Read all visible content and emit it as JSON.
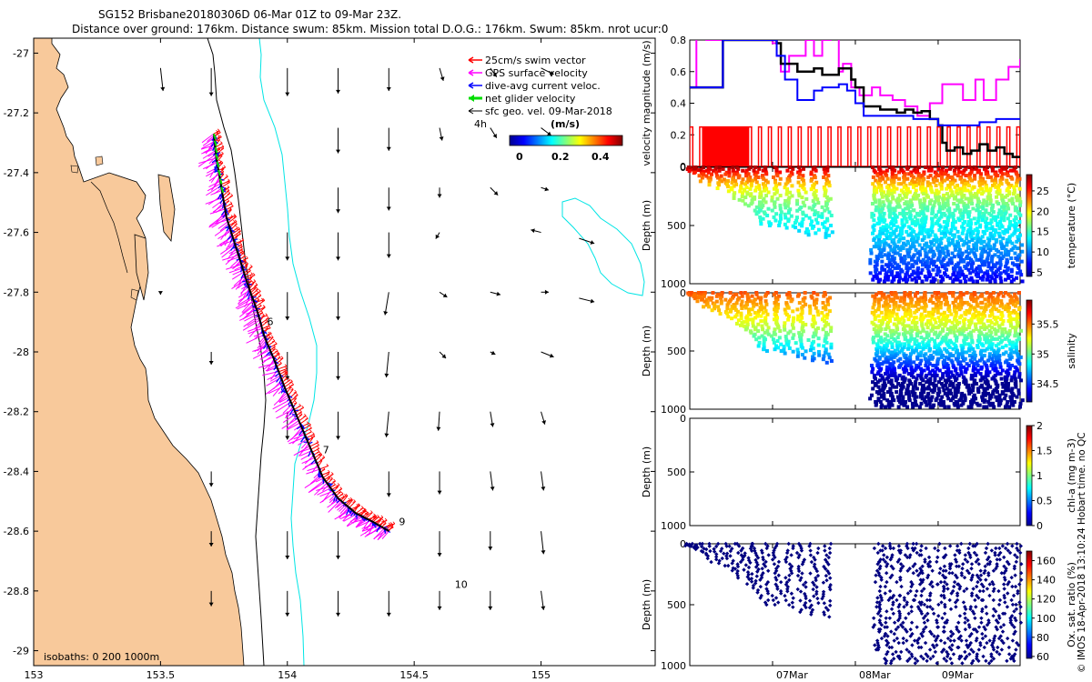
{
  "header": {
    "line1": "SG152 Brisbane20180306D 06-Mar 01Z to 09-Mar 23Z.",
    "line2": "Distance over ground: 176km. Distance swum: 85km. Mission total D.O.G.: 176km. Swum: 85km. nrot ucur:0"
  },
  "credit": "© IMOS 18-Apr-2018 13:10:24 Hobart time. no QC",
  "colors": {
    "land": "#f8c99b",
    "swim": "#ff0000",
    "gps": "#ff00ff",
    "current": "#0000ff",
    "net": "#00dd00",
    "sfc": "#000000",
    "isobath200": "#00e5e5",
    "isobath1000": "#000000"
  },
  "chart_data": [
    {
      "type": "scatter",
      "name": "map",
      "x_ticks": [
        "153",
        "153.5",
        "154",
        "154.5",
        "155"
      ],
      "x_tick_values": [
        153,
        153.5,
        154,
        154.5,
        155
      ],
      "y_ticks": [
        "-27",
        "-27.2",
        "-27.4",
        "-27.6",
        "-27.8",
        "-28",
        "-28.2",
        "-28.4",
        "-28.6",
        "-28.8",
        "-29"
      ],
      "y_tick_values": [
        -27,
        -27.2,
        -27.4,
        -27.6,
        -27.8,
        -28,
        -28.2,
        -28.4,
        -28.6,
        -28.8,
        -29
      ],
      "xlim": [
        153,
        155.45
      ],
      "ylim": [
        -29.05,
        -26.95
      ],
      "legend": [
        {
          "label": "25cm/s swim vector",
          "color": "#ff0000"
        },
        {
          "label": "GPS surface velocity",
          "color": "#ff00ff"
        },
        {
          "label": "dive-avg current veloc.",
          "color": "#0000ff"
        },
        {
          "label": "net glider velocity",
          "color": "#00dd00"
        },
        {
          "label": "sfc geo. vel. 09-Mar-2018",
          "color": "#000000"
        }
      ],
      "colorbar": {
        "title": "(m/s)",
        "ticks": [
          "0",
          "0.2",
          "0.4"
        ],
        "range": [
          0,
          0.5
        ]
      },
      "time_marker_4h": "4h",
      "isobath_note": "isobaths: 0   200  1000m",
      "track": {
        "lon": [
          153.71,
          153.72,
          153.74,
          153.76,
          153.79,
          153.82,
          153.85,
          153.88,
          153.91,
          153.95,
          153.99,
          154.04,
          154.09,
          154.14,
          154.2,
          154.27,
          154.34,
          154.4
        ],
        "lat": [
          -27.27,
          -27.35,
          -27.45,
          -27.55,
          -27.63,
          -27.71,
          -27.79,
          -27.86,
          -27.95,
          -28.03,
          -28.12,
          -28.22,
          -28.32,
          -28.42,
          -28.49,
          -28.54,
          -28.57,
          -28.6
        ]
      },
      "day_labels": [
        {
          "text": "6",
          "lon": 153.92,
          "lat": -27.91
        },
        {
          "text": "7",
          "lon": 154.14,
          "lat": -28.34
        },
        {
          "text": "9",
          "lon": 154.44,
          "lat": -28.58
        },
        {
          "text": "10",
          "lon": 154.66,
          "lat": -28.79
        }
      ],
      "sfc_vectors_u_v": [
        [
          153.5,
          -27.05,
          0.02,
          -0.18
        ],
        [
          153.7,
          -27.05,
          0.0,
          -0.22
        ],
        [
          154.0,
          -27.05,
          0.0,
          -0.22
        ],
        [
          154.2,
          -27.05,
          0.0,
          -0.2
        ],
        [
          154.4,
          -27.05,
          0.0,
          -0.18
        ],
        [
          154.6,
          -27.05,
          0.03,
          -0.1
        ],
        [
          154.8,
          -27.05,
          0.05,
          -0.07
        ],
        [
          155.0,
          -27.05,
          0.1,
          -0.05
        ],
        [
          154.2,
          -27.25,
          0.0,
          -0.2
        ],
        [
          154.4,
          -27.25,
          0.0,
          -0.18
        ],
        [
          154.6,
          -27.25,
          0.02,
          -0.1
        ],
        [
          154.8,
          -27.25,
          0.05,
          -0.08
        ],
        [
          155.0,
          -27.25,
          0.08,
          -0.06
        ],
        [
          154.2,
          -27.45,
          0.0,
          -0.2
        ],
        [
          154.4,
          -27.45,
          0.0,
          -0.18
        ],
        [
          154.6,
          -27.45,
          0.0,
          -0.08
        ],
        [
          154.8,
          -27.45,
          0.06,
          -0.06
        ],
        [
          155.0,
          -27.45,
          0.06,
          -0.02
        ],
        [
          154.0,
          -27.6,
          0.0,
          -0.22
        ],
        [
          154.2,
          -27.6,
          0.0,
          -0.22
        ],
        [
          154.4,
          -27.6,
          0.0,
          -0.2
        ],
        [
          154.6,
          -27.6,
          -0.03,
          -0.05
        ],
        [
          155.0,
          -27.6,
          -0.08,
          0.02
        ],
        [
          155.15,
          -27.62,
          0.12,
          -0.04
        ],
        [
          153.5,
          -27.8,
          0.0,
          -0.02
        ],
        [
          154.0,
          -27.8,
          0.0,
          -0.22
        ],
        [
          154.2,
          -27.8,
          0.0,
          -0.22
        ],
        [
          154.4,
          -27.8,
          -0.03,
          -0.18
        ],
        [
          154.6,
          -27.8,
          0.06,
          -0.04
        ],
        [
          154.8,
          -27.8,
          0.08,
          -0.02
        ],
        [
          155.0,
          -27.8,
          0.06,
          0.0
        ],
        [
          155.15,
          -27.82,
          0.12,
          -0.03
        ],
        [
          153.7,
          -28.0,
          0.0,
          -0.1
        ],
        [
          154.0,
          -28.0,
          0.0,
          -0.22
        ],
        [
          154.2,
          -28.0,
          0.0,
          -0.22
        ],
        [
          154.4,
          -28.0,
          -0.02,
          -0.2
        ],
        [
          154.6,
          -28.0,
          0.05,
          -0.05
        ],
        [
          154.8,
          -28.0,
          0.04,
          -0.02
        ],
        [
          155.0,
          -28.0,
          0.1,
          -0.04
        ],
        [
          154.0,
          -28.2,
          0.0,
          -0.22
        ],
        [
          154.2,
          -28.2,
          0.0,
          -0.22
        ],
        [
          154.4,
          -28.2,
          -0.02,
          -0.2
        ],
        [
          154.6,
          -28.2,
          -0.01,
          -0.15
        ],
        [
          154.8,
          -28.2,
          0.02,
          -0.12
        ],
        [
          155.0,
          -28.2,
          0.03,
          -0.1
        ],
        [
          153.7,
          -28.4,
          0.0,
          -0.12
        ],
        [
          154.4,
          -28.4,
          0.0,
          -0.2
        ],
        [
          154.6,
          -28.4,
          0.0,
          -0.18
        ],
        [
          154.8,
          -28.4,
          0.02,
          -0.15
        ],
        [
          155.0,
          -28.4,
          0.02,
          -0.15
        ],
        [
          153.7,
          -28.6,
          0.0,
          -0.12
        ],
        [
          154.0,
          -28.6,
          0.0,
          -0.22
        ],
        [
          154.2,
          -28.6,
          0.0,
          -0.22
        ],
        [
          154.6,
          -28.6,
          0.0,
          -0.2
        ],
        [
          154.8,
          -28.6,
          0.0,
          -0.15
        ],
        [
          155.0,
          -28.6,
          0.02,
          -0.18
        ],
        [
          153.7,
          -28.8,
          0.0,
          -0.12
        ],
        [
          154.0,
          -28.8,
          0.0,
          -0.2
        ],
        [
          154.2,
          -28.8,
          0.0,
          -0.2
        ],
        [
          154.4,
          -28.8,
          0.0,
          -0.2
        ],
        [
          154.6,
          -28.8,
          0.0,
          -0.15
        ],
        [
          154.8,
          -28.8,
          0.0,
          -0.15
        ],
        [
          155.0,
          -28.8,
          0.02,
          -0.15
        ]
      ]
    },
    {
      "type": "line",
      "name": "velocity",
      "ylabel": "velocity magnitude (m/s)",
      "ylim": [
        0,
        0.8
      ],
      "y_ticks": [
        "0",
        "0.2",
        "0.4",
        "0.6",
        "0.8"
      ],
      "y_tick_values": [
        0,
        0.2,
        0.4,
        0.6,
        0.8
      ],
      "xlim": [
        6.0,
        9.99
      ],
      "x_ticks": [
        "07Mar",
        "08Mar",
        "09Mar"
      ],
      "x_tick_values": [
        7,
        8,
        9
      ],
      "series": [
        {
          "color": "#ff00ff",
          "x": [
            6.0,
            6.08,
            6.08,
            6.2,
            6.2,
            6.5,
            6.5,
            6.9,
            7.0,
            7.05,
            7.1,
            7.2,
            7.4,
            7.5,
            7.6,
            7.7,
            7.8,
            7.85,
            7.95,
            8.05,
            8.2,
            8.3,
            8.45,
            8.6,
            8.75,
            8.9,
            9.05,
            9.15,
            9.3,
            9.45,
            9.55,
            9.7,
            9.85,
            9.99
          ],
          "y": [
            0.5,
            0.5,
            0.82,
            0.82,
            0.8,
            0.8,
            0.8,
            0.8,
            0.78,
            0.7,
            0.6,
            0.7,
            0.8,
            0.7,
            0.8,
            0.82,
            0.6,
            0.65,
            0.5,
            0.45,
            0.5,
            0.45,
            0.42,
            0.38,
            0.32,
            0.4,
            0.52,
            0.52,
            0.42,
            0.55,
            0.42,
            0.55,
            0.63,
            0.68
          ]
        },
        {
          "color": "#000000",
          "x": [
            6.0,
            6.3,
            6.4,
            7.0,
            7.05,
            7.1,
            7.3,
            7.5,
            7.6,
            7.8,
            7.95,
            8.0,
            8.1,
            8.3,
            8.5,
            8.6,
            8.7,
            8.8,
            8.9,
            9.0,
            9.05,
            9.1,
            9.2,
            9.3,
            9.4,
            9.5,
            9.6,
            9.7,
            9.8,
            9.9,
            9.99
          ],
          "y": [
            0.5,
            0.5,
            0.8,
            0.8,
            0.78,
            0.65,
            0.6,
            0.62,
            0.58,
            0.62,
            0.55,
            0.5,
            0.38,
            0.36,
            0.34,
            0.36,
            0.34,
            0.35,
            0.3,
            0.26,
            0.15,
            0.1,
            0.12,
            0.08,
            0.1,
            0.14,
            0.1,
            0.12,
            0.08,
            0.06,
            0.06
          ]
        },
        {
          "color": "#0000ff",
          "x": [
            6.0,
            6.35,
            6.4,
            6.5,
            6.6,
            7.0,
            7.05,
            7.15,
            7.3,
            7.5,
            7.6,
            7.8,
            7.9,
            8.0,
            8.1,
            8.4,
            8.7,
            8.9,
            9.0,
            9.3,
            9.5,
            9.7,
            9.99
          ],
          "y": [
            0.5,
            0.5,
            0.8,
            0.8,
            0.8,
            0.8,
            0.7,
            0.55,
            0.42,
            0.48,
            0.5,
            0.52,
            0.48,
            0.4,
            0.32,
            0.32,
            0.3,
            0.3,
            0.26,
            0.26,
            0.28,
            0.3,
            0.3
          ]
        },
        {
          "color": "#ff0000",
          "type": "square_wave",
          "high": 0.25,
          "low": 0,
          "x_start": 6.0,
          "x_end": 9.99,
          "dense_segment": [
            6.15,
            6.7
          ],
          "dense_period": 0.02,
          "sparse_period": 0.12,
          "late_drop": [
            9.1,
            9.99
          ]
        }
      ]
    },
    {
      "type": "scatter",
      "name": "temperature",
      "ylabel": "Depth (m)",
      "cbar_label": "temperature (°C)",
      "ylim": [
        1000,
        0
      ],
      "y_ticks": [
        "0",
        "500",
        "1000"
      ],
      "y_tick_values": [
        0,
        500,
        1000
      ],
      "cbar_ticks": [
        "5",
        "10",
        "15",
        "20",
        "25"
      ],
      "cbar_tick_values": [
        5,
        10,
        15,
        20,
        25
      ],
      "cbar_range": [
        4,
        29
      ],
      "surface_value": 28,
      "profiles_max_depth": [
        20,
        40,
        60,
        90,
        120,
        150,
        180,
        220,
        280,
        330,
        400,
        500,
        500,
        520,
        560,
        580,
        600,
        980,
        980,
        980,
        980,
        980,
        980,
        980,
        980,
        980,
        980,
        980,
        980,
        980,
        980,
        980,
        980,
        980,
        980,
        980,
        980
      ],
      "profile_times": [
        6.0,
        6.05,
        6.1,
        6.15,
        6.2,
        6.3,
        6.4,
        6.5,
        6.6,
        6.7,
        6.8,
        6.9,
        7.05,
        7.2,
        7.35,
        7.5,
        7.65,
        8.25,
        8.33,
        8.41,
        8.49,
        8.58,
        8.67,
        8.76,
        8.85,
        8.94,
        9.03,
        9.12,
        9.21,
        9.3,
        9.39,
        9.48,
        9.57,
        9.66,
        9.75,
        9.85,
        9.95
      ]
    },
    {
      "type": "scatter",
      "name": "salinity",
      "ylabel": "Depth (m)",
      "cbar_label": "salinity",
      "ylim": [
        1000,
        0
      ],
      "y_ticks": [
        "0",
        "500",
        "1000"
      ],
      "y_tick_values": [
        0,
        500,
        1000
      ],
      "cbar_ticks": [
        "34.5",
        "35",
        "35.5"
      ],
      "cbar_tick_values": [
        34.5,
        35,
        35.5
      ],
      "cbar_range": [
        34.2,
        35.9
      ],
      "surface_value": 35.6
    },
    {
      "type": "scatter",
      "name": "chlorophyll",
      "ylabel": "Depth (m)",
      "cbar_label": "chl-a (mg m-3)",
      "ylim": [
        1000,
        0
      ],
      "y_ticks": [
        "0",
        "500",
        "1000"
      ],
      "y_tick_values": [
        0,
        500,
        1000
      ],
      "cbar_ticks": [
        "0",
        "0.5",
        "1",
        "1.5",
        "2"
      ],
      "cbar_tick_values": [
        0,
        0.5,
        1,
        1.5,
        2
      ],
      "cbar_range": [
        0,
        2
      ]
    },
    {
      "type": "scatter",
      "name": "oxygen",
      "ylabel": "Depth (m)",
      "cbar_label": "Ox. sat. ratio (%)",
      "ylim": [
        1000,
        0
      ],
      "y_ticks": [
        "0",
        "500",
        "1000"
      ],
      "y_tick_values": [
        0,
        500,
        1000
      ],
      "cbar_ticks": [
        "60",
        "80",
        "100",
        "120",
        "140",
        "160"
      ],
      "cbar_tick_values": [
        60,
        80,
        100,
        120,
        140,
        160
      ],
      "cbar_range": [
        58,
        170
      ],
      "x_ticks": [
        "07Mar",
        "08Mar",
        "09Mar"
      ],
      "x_tick_values": [
        7,
        8,
        9
      ],
      "xlim": [
        6.0,
        9.99
      ]
    }
  ]
}
